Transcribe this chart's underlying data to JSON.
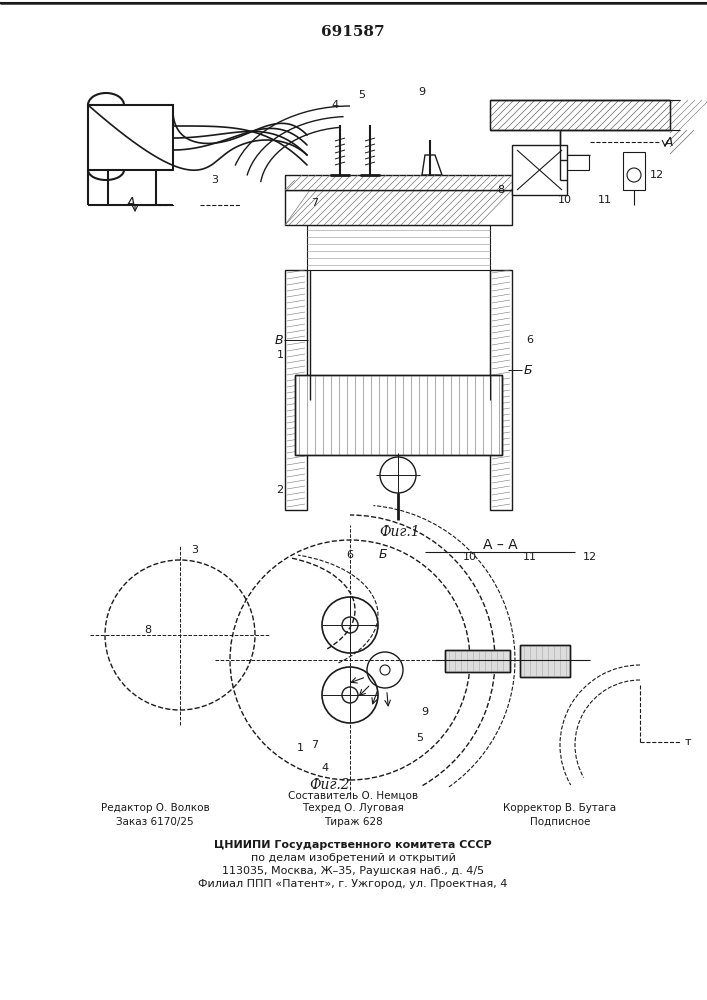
{
  "title": "691587",
  "fig1_label": "Фиг.1",
  "fig2_label": "Фиг.2",
  "section_label": "А – А",
  "footer_left_line1": "Редактор О. Волков",
  "footer_left_line2": "Заказ 6170/25",
  "footer_center_line1": "Составитель О. Немцов",
  "footer_center_line2": "Техред О. Луговая",
  "footer_center_line3": "Тираж 628",
  "footer_right_line1": "Корректор В. Бутага",
  "footer_right_line2": "Подписное",
  "footer_org_line1": "ЦНИИПИ Государственного комитета СССР",
  "footer_org_line2": "по делам изобретений и открытий",
  "footer_org_line3": "113035, Москва, Ж–35, Раушская наб., д. 4/5",
  "footer_org_line4": "Филиал ППП «Патент», г. Ужгород, ул. Проектная, 4",
  "bg_color": "#ffffff",
  "line_color": "#1a1a1a"
}
